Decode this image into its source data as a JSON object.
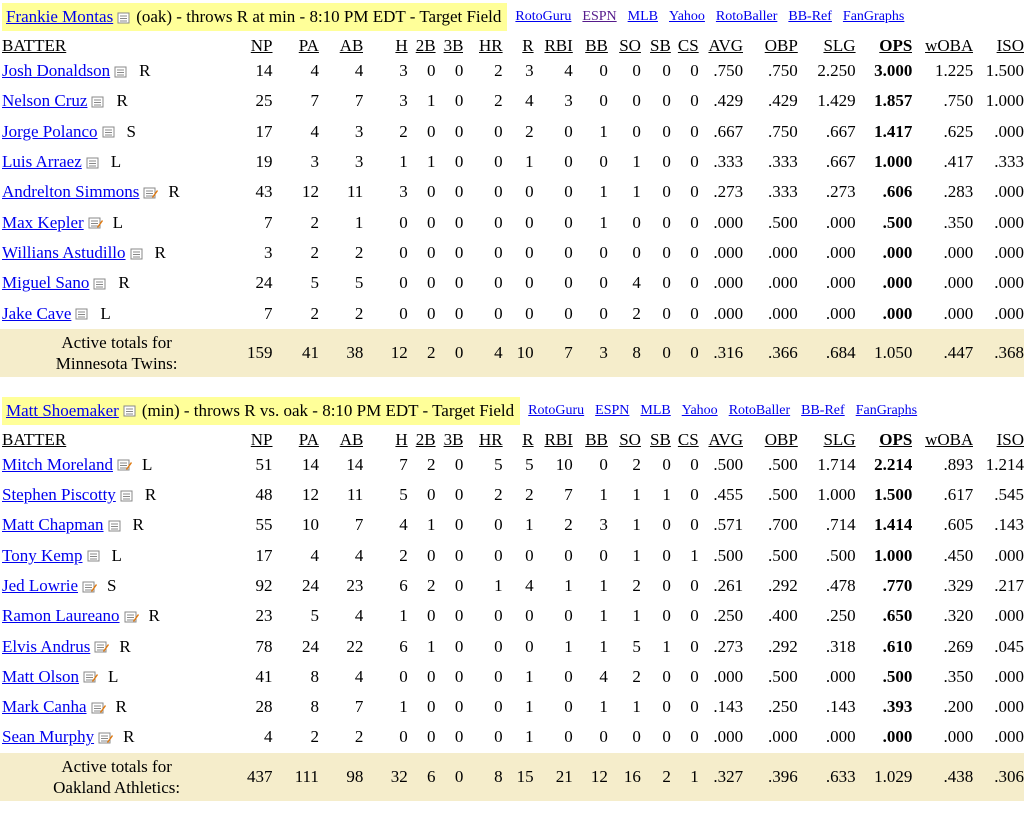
{
  "link_labels": [
    "RotoGuru",
    "ESPN",
    "MLB",
    "Yahoo",
    "RotoBaller",
    "BB-Ref",
    "FanGraphs"
  ],
  "columns": [
    "BATTER",
    "NP",
    "PA",
    "AB",
    "H",
    "2B",
    "3B",
    "HR",
    "R",
    "RBI",
    "BB",
    "SO",
    "SB",
    "CS",
    "AVG",
    "OBP",
    "SLG",
    "OPS",
    "wOBA",
    "ISO"
  ],
  "games": [
    {
      "pitcher": "Frankie Montas",
      "info": "(oak) - throws R at min - 8:10 PM EDT - Target Field",
      "visited_link": "ESPN",
      "batters": [
        {
          "name": "Josh Donaldson",
          "hand": "R",
          "icon": "note-icon",
          "stats": [
            "14",
            "4",
            "4",
            "3",
            "0",
            "0",
            "2",
            "3",
            "4",
            "0",
            "0",
            "0",
            "0",
            ".750",
            ".750",
            "2.250",
            "3.000",
            "1.225",
            "1.500"
          ]
        },
        {
          "name": "Nelson Cruz",
          "hand": "R",
          "icon": "note-icon",
          "stats": [
            "25",
            "7",
            "7",
            "3",
            "1",
            "0",
            "2",
            "4",
            "3",
            "0",
            "0",
            "0",
            "0",
            ".429",
            ".429",
            "1.429",
            "1.857",
            ".750",
            "1.000"
          ]
        },
        {
          "name": "Jorge Polanco",
          "hand": "S",
          "icon": "note-icon",
          "stats": [
            "17",
            "4",
            "3",
            "2",
            "0",
            "0",
            "0",
            "2",
            "0",
            "1",
            "0",
            "0",
            "0",
            ".667",
            ".750",
            ".667",
            "1.417",
            ".625",
            ".000"
          ]
        },
        {
          "name": "Luis Arraez",
          "hand": "L",
          "icon": "note-icon",
          "stats": [
            "19",
            "3",
            "3",
            "1",
            "1",
            "0",
            "0",
            "1",
            "0",
            "0",
            "1",
            "0",
            "0",
            ".333",
            ".333",
            ".667",
            "1.000",
            ".417",
            ".333"
          ]
        },
        {
          "name": "Andrelton Simmons",
          "hand": "R",
          "icon": "note-edit-icon",
          "stats": [
            "43",
            "12",
            "11",
            "3",
            "0",
            "0",
            "0",
            "0",
            "0",
            "1",
            "1",
            "0",
            "0",
            ".273",
            ".333",
            ".273",
            ".606",
            ".283",
            ".000"
          ]
        },
        {
          "name": "Max Kepler",
          "hand": "L",
          "icon": "note-edit-icon",
          "stats": [
            "7",
            "2",
            "1",
            "0",
            "0",
            "0",
            "0",
            "0",
            "0",
            "1",
            "0",
            "0",
            "0",
            ".000",
            ".500",
            ".000",
            ".500",
            ".350",
            ".000"
          ]
        },
        {
          "name": "Willians Astudillo",
          "hand": "R",
          "icon": "note-icon",
          "stats": [
            "3",
            "2",
            "2",
            "0",
            "0",
            "0",
            "0",
            "0",
            "0",
            "0",
            "0",
            "0",
            "0",
            ".000",
            ".000",
            ".000",
            ".000",
            ".000",
            ".000"
          ]
        },
        {
          "name": "Miguel Sano",
          "hand": "R",
          "icon": "note-icon",
          "stats": [
            "24",
            "5",
            "5",
            "0",
            "0",
            "0",
            "0",
            "0",
            "0",
            "0",
            "4",
            "0",
            "0",
            ".000",
            ".000",
            ".000",
            ".000",
            ".000",
            ".000"
          ]
        },
        {
          "name": "Jake Cave",
          "hand": "L",
          "icon": "note-icon",
          "stats": [
            "7",
            "2",
            "2",
            "0",
            "0",
            "0",
            "0",
            "0",
            "0",
            "0",
            "2",
            "0",
            "0",
            ".000",
            ".000",
            ".000",
            ".000",
            ".000",
            ".000"
          ]
        }
      ],
      "totals": {
        "label_line1": "Active totals for",
        "label_line2": "Minnesota Twins:",
        "stats": [
          "159",
          "41",
          "38",
          "12",
          "2",
          "0",
          "4",
          "10",
          "7",
          "3",
          "8",
          "0",
          "0",
          ".316",
          ".366",
          ".684",
          "1.050",
          ".447",
          ".368"
        ]
      }
    },
    {
      "pitcher": "Matt Shoemaker",
      "info": "(min) - throws R vs. oak - 8:10 PM EDT - Target Field",
      "visited_link": "",
      "batters": [
        {
          "name": "Mitch Moreland",
          "hand": "L",
          "icon": "note-edit-icon",
          "stats": [
            "51",
            "14",
            "14",
            "7",
            "2",
            "0",
            "5",
            "5",
            "10",
            "0",
            "2",
            "0",
            "0",
            ".500",
            ".500",
            "1.714",
            "2.214",
            ".893",
            "1.214"
          ]
        },
        {
          "name": "Stephen Piscotty",
          "hand": "R",
          "icon": "note-icon",
          "stats": [
            "48",
            "12",
            "11",
            "5",
            "0",
            "0",
            "2",
            "2",
            "7",
            "1",
            "1",
            "1",
            "0",
            ".455",
            ".500",
            "1.000",
            "1.500",
            ".617",
            ".545"
          ]
        },
        {
          "name": "Matt Chapman",
          "hand": "R",
          "icon": "note-icon",
          "stats": [
            "55",
            "10",
            "7",
            "4",
            "1",
            "0",
            "0",
            "1",
            "2",
            "3",
            "1",
            "0",
            "0",
            ".571",
            ".700",
            ".714",
            "1.414",
            ".605",
            ".143"
          ]
        },
        {
          "name": "Tony Kemp",
          "hand": "L",
          "icon": "note-icon",
          "stats": [
            "17",
            "4",
            "4",
            "2",
            "0",
            "0",
            "0",
            "0",
            "0",
            "0",
            "1",
            "0",
            "1",
            ".500",
            ".500",
            ".500",
            "1.000",
            ".450",
            ".000"
          ]
        },
        {
          "name": "Jed Lowrie",
          "hand": "S",
          "icon": "note-edit-icon",
          "stats": [
            "92",
            "24",
            "23",
            "6",
            "2",
            "0",
            "1",
            "4",
            "1",
            "1",
            "2",
            "0",
            "0",
            ".261",
            ".292",
            ".478",
            ".770",
            ".329",
            ".217"
          ]
        },
        {
          "name": "Ramon Laureano",
          "hand": "R",
          "icon": "note-edit-icon",
          "stats": [
            "23",
            "5",
            "4",
            "1",
            "0",
            "0",
            "0",
            "0",
            "0",
            "1",
            "1",
            "0",
            "0",
            ".250",
            ".400",
            ".250",
            ".650",
            ".320",
            ".000"
          ]
        },
        {
          "name": "Elvis Andrus",
          "hand": "R",
          "icon": "note-edit-icon",
          "stats": [
            "78",
            "24",
            "22",
            "6",
            "1",
            "0",
            "0",
            "0",
            "1",
            "1",
            "5",
            "1",
            "0",
            ".273",
            ".292",
            ".318",
            ".610",
            ".269",
            ".045"
          ]
        },
        {
          "name": "Matt Olson",
          "hand": "L",
          "icon": "note-edit-icon",
          "stats": [
            "41",
            "8",
            "4",
            "0",
            "0",
            "0",
            "0",
            "1",
            "0",
            "4",
            "2",
            "0",
            "0",
            ".000",
            ".500",
            ".000",
            ".500",
            ".350",
            ".000"
          ]
        },
        {
          "name": "Mark Canha",
          "hand": "R",
          "icon": "note-edit-icon",
          "stats": [
            "28",
            "8",
            "7",
            "1",
            "0",
            "0",
            "0",
            "1",
            "0",
            "1",
            "1",
            "0",
            "0",
            ".143",
            ".250",
            ".143",
            ".393",
            ".200",
            ".000"
          ]
        },
        {
          "name": "Sean Murphy",
          "hand": "R",
          "icon": "note-edit-icon",
          "stats": [
            "4",
            "2",
            "2",
            "0",
            "0",
            "0",
            "0",
            "1",
            "0",
            "0",
            "0",
            "0",
            "0",
            ".000",
            ".000",
            ".000",
            ".000",
            ".000",
            ".000"
          ]
        }
      ],
      "totals": {
        "label_line1": "Active totals for",
        "label_line2": "Oakland Athletics:",
        "stats": [
          "437",
          "111",
          "98",
          "32",
          "6",
          "0",
          "8",
          "15",
          "21",
          "12",
          "16",
          "2",
          "1",
          ".327",
          ".396",
          ".633",
          "1.029",
          ".438",
          ".306"
        ]
      }
    }
  ],
  "colors": {
    "header_highlight": "#ffff99",
    "totals_bg": "#f5edcb",
    "link": "#0000ee",
    "visited_link": "#551a8b"
  }
}
